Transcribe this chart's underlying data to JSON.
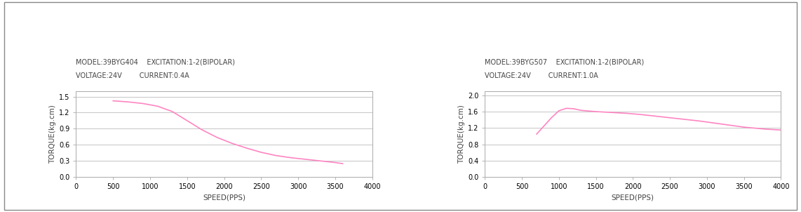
{
  "chart1": {
    "title_line1": "MODEL:39BYG404    EXCITATION:1-2(BIPOLAR)",
    "title_line2": "VOLTAGE:24V        CURRENT:0.4A",
    "xlabel": "SPEED(PPS)",
    "ylabel": "TORQUE(kg.cm)",
    "xlim": [
      0,
      4000
    ],
    "ylim": [
      0,
      1.6
    ],
    "yticks": [
      0,
      0.3,
      0.6,
      0.9,
      1.2,
      1.5
    ],
    "xticks": [
      0,
      500,
      1000,
      1500,
      2000,
      2500,
      3000,
      3500,
      4000
    ],
    "curve_x": [
      500,
      700,
      900,
      1100,
      1300,
      1500,
      1700,
      1900,
      2100,
      2300,
      2500,
      2700,
      2900,
      3100,
      3300,
      3500,
      3600
    ],
    "curve_y": [
      1.42,
      1.4,
      1.37,
      1.32,
      1.22,
      1.05,
      0.88,
      0.74,
      0.63,
      0.54,
      0.46,
      0.4,
      0.36,
      0.33,
      0.3,
      0.27,
      0.25
    ],
    "curve_color": "#FF85C2",
    "grid_color": "#bbbbbb"
  },
  "chart2": {
    "title_line1": "MODEL:39BYG507    EXCITATION:1-2(BIPOLAR)",
    "title_line2": "VOLTAGE:24V        CURRENT:1.0A",
    "xlabel": "SPEED(PPS)",
    "ylabel": "TORQUE(kg.cm)",
    "xlim": [
      0,
      4000
    ],
    "ylim": [
      0,
      2.1
    ],
    "yticks": [
      0,
      0.4,
      0.8,
      1.2,
      1.6,
      2.0
    ],
    "xticks": [
      0,
      500,
      1000,
      1500,
      2000,
      2500,
      3000,
      3500,
      4000
    ],
    "curve_x": [
      700,
      800,
      900,
      1000,
      1100,
      1200,
      1300,
      1500,
      1700,
      1900,
      2100,
      2300,
      2500,
      2700,
      2900,
      3100,
      3300,
      3500,
      3800,
      4000
    ],
    "curve_y": [
      1.05,
      1.25,
      1.45,
      1.62,
      1.68,
      1.67,
      1.63,
      1.6,
      1.58,
      1.56,
      1.53,
      1.49,
      1.45,
      1.41,
      1.37,
      1.32,
      1.27,
      1.22,
      1.17,
      1.15
    ],
    "curve_color": "#FF85C2",
    "grid_color": "#bbbbbb"
  },
  "bg_color": "#ffffff",
  "outer_border_color": "#888888",
  "title_fontsize": 7.0,
  "axis_label_fontsize": 7.5,
  "tick_fontsize": 7.0,
  "spine_color": "#aaaaaa",
  "text_color": "#444444"
}
